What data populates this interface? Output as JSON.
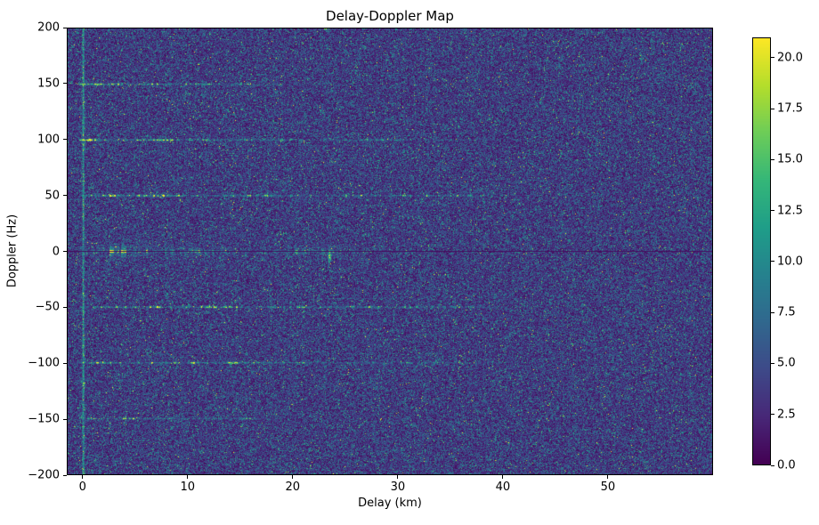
{
  "chart_data": {
    "type": "heatmap",
    "title": "Delay-Doppler Map",
    "xlabel": "Delay (km)",
    "ylabel": "Doppler (Hz)",
    "xlim": [
      -1.5,
      60
    ],
    "ylim": [
      -200,
      200
    ],
    "colormap": "viridis",
    "x_ticks": {
      "values": [
        0,
        10,
        20,
        30,
        40,
        50
      ],
      "labels": [
        "0",
        "10",
        "20",
        "30",
        "40",
        "50"
      ]
    },
    "y_ticks": {
      "values": [
        200,
        150,
        100,
        50,
        0,
        -50,
        -100,
        -150,
        -200
      ],
      "labels": [
        "200",
        "150",
        "100",
        "50",
        "0",
        "−50",
        "−100",
        "−150",
        "−200"
      ]
    },
    "colorbar": {
      "vmin": 0,
      "vmax": 21,
      "tick_values": [
        0,
        2.5,
        5,
        7.5,
        10,
        12.5,
        15,
        17.5,
        20
      ],
      "tick_labels": [
        "0.0",
        "2.5",
        "5.0",
        "7.5",
        "10.0",
        "12.5",
        "15.0",
        "17.5",
        "20.0"
      ]
    },
    "background_noise": {
      "mean": 4.2,
      "gamma_shape": 2
    },
    "doppler_lines": [
      {
        "doppler_hz": 150,
        "peak": 12,
        "extent_km": 16,
        "tau_km": 11
      },
      {
        "doppler_hz": 100,
        "peak": 14,
        "extent_km": 36,
        "tau_km": 15
      },
      {
        "doppler_hz": 50,
        "peak": 17,
        "extent_km": 36,
        "tau_km": 17
      },
      {
        "doppler_hz": 0,
        "peak": 21,
        "extent_km": 26,
        "tau_km": 10,
        "notch": true,
        "halo": true
      },
      {
        "doppler_hz": -50,
        "peak": 17,
        "extent_km": 36,
        "tau_km": 17
      },
      {
        "doppler_hz": -100,
        "peak": 14,
        "extent_km": 36,
        "tau_km": 15
      },
      {
        "doppler_hz": -150,
        "peak": 11,
        "extent_km": 16,
        "tau_km": 11
      }
    ],
    "zero_delay_column": {
      "delay_km": 0,
      "peak": 9,
      "width_km": 0.4
    },
    "point_target": {
      "delay_km": 23.5,
      "doppler_hz": -4,
      "peak": 12
    }
  }
}
